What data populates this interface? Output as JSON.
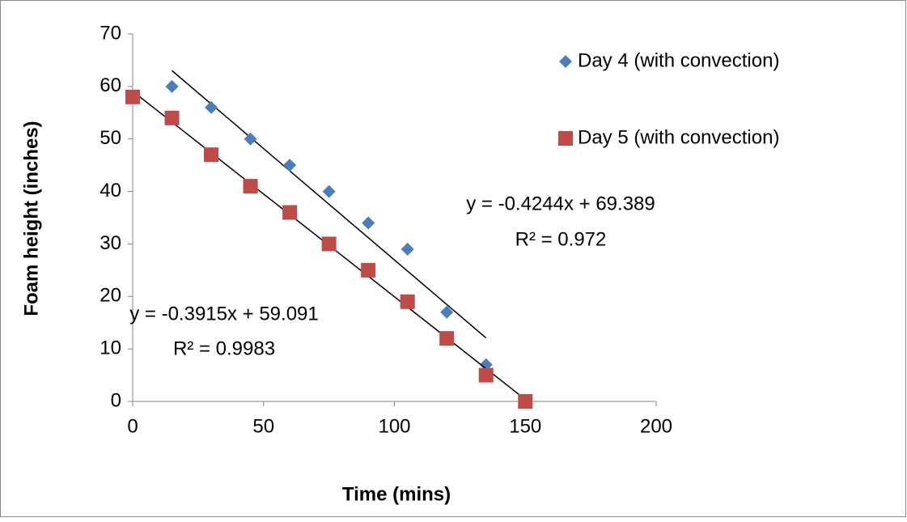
{
  "chart_data": {
    "type": "scatter",
    "x_label": "Time (mins)",
    "y_label": "Foam height (inches)",
    "xlim": [
      0,
      200
    ],
    "xticks": [
      0,
      50,
      100,
      150,
      200
    ],
    "ylim": [
      0,
      70
    ],
    "yticks": [
      0,
      10,
      20,
      30,
      40,
      50,
      60,
      70
    ],
    "grid": false,
    "legend": "right",
    "series": [
      {
        "name": "Day 4 (with convection)",
        "color": "#4a7ebb",
        "marker": "diamond",
        "x": [
          15,
          30,
          45,
          60,
          75,
          90,
          105,
          120,
          135
        ],
        "values": [
          60,
          56,
          50,
          45,
          40,
          34,
          29,
          17,
          7
        ],
        "trendline": {
          "slope": -0.4244,
          "intercept": 69.389,
          "equation": "y = -0.4244x + 69.389",
          "r_squared": "R² = 0.972"
        }
      },
      {
        "name": "Day 5 (with convection)",
        "color": "#be4b48",
        "marker": "square",
        "x": [
          0,
          15,
          30,
          45,
          60,
          75,
          90,
          105,
          120,
          135,
          150
        ],
        "values": [
          58,
          54,
          47,
          41,
          36,
          30,
          25,
          19,
          12,
          5,
          0
        ],
        "trendline": {
          "slope": -0.3915,
          "intercept": 59.091,
          "equation": "y = -0.3915x + 59.091",
          "r_squared": "R² = 0.9983"
        }
      }
    ]
  }
}
